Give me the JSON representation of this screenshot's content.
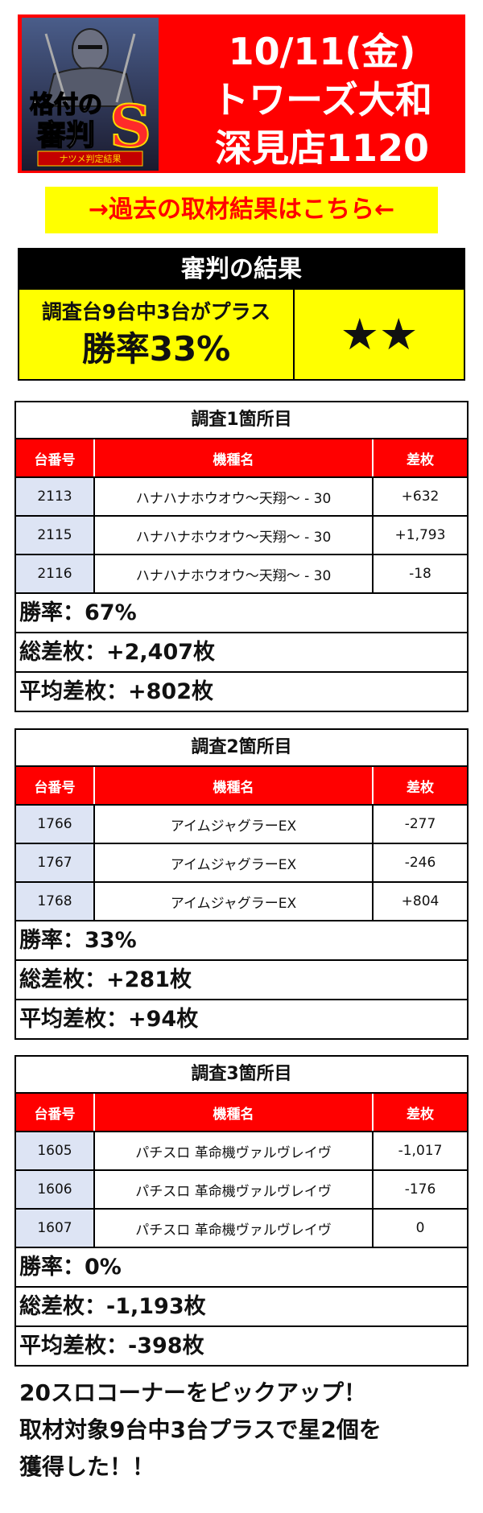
{
  "banner": {
    "logo_text_1": "格付の",
    "logo_text_2": "審判",
    "logo_letter": "S",
    "logo_caption": "ナツメ判定結果",
    "date": "10/11(金)",
    "store_line1": "トワーズ大和",
    "store_line2": "深見店1120"
  },
  "past_link": "→過去の取材結果はこちら←",
  "judgment": {
    "title": "審判の結果",
    "summary": "調査台9台中3台がプラス",
    "win_rate": "勝率33%",
    "stars": "★★"
  },
  "table_headers": {
    "machine_no": "台番号",
    "machine_name": "機種名",
    "diff": "差枚"
  },
  "sections": [
    {
      "title": "調査1箇所目",
      "rows": [
        {
          "no": "2113",
          "name": "ハナハナホウオウ～天翔～ - 30",
          "diff": "+632"
        },
        {
          "no": "2115",
          "name": "ハナハナホウオウ～天翔～ - 30",
          "diff": "+1,793"
        },
        {
          "no": "2116",
          "name": "ハナハナホウオウ～天翔～ - 30",
          "diff": "-18"
        }
      ],
      "win_rate": "勝率：67%",
      "total": "総差枚：+2,407枚",
      "average": "平均差枚：+802枚"
    },
    {
      "title": "調査2箇所目",
      "rows": [
        {
          "no": "1766",
          "name": "アイムジャグラーEX",
          "diff": "-277"
        },
        {
          "no": "1767",
          "name": "アイムジャグラーEX",
          "diff": "-246"
        },
        {
          "no": "1768",
          "name": "アイムジャグラーEX",
          "diff": "+804"
        }
      ],
      "win_rate": "勝率：33%",
      "total": "総差枚：+281枚",
      "average": "平均差枚：+94枚"
    },
    {
      "title": "調査3箇所目",
      "rows": [
        {
          "no": "1605",
          "name": "パチスロ 革命機ヴァルヴレイヴ",
          "diff": "-1,017"
        },
        {
          "no": "1606",
          "name": "パチスロ 革命機ヴァルヴレイヴ",
          "diff": "-176"
        },
        {
          "no": "1607",
          "name": "パチスロ 革命機ヴァルヴレイヴ",
          "diff": "0"
        }
      ],
      "win_rate": "勝率：0%",
      "total": "総差枚：-1,193枚",
      "average": "平均差枚：-398枚"
    }
  ],
  "footer": {
    "line1": "20スロコーナーをピックアップ！",
    "line2": "取材対象9台中3台プラスで星2個を",
    "line3": "獲得した！！"
  },
  "colors": {
    "banner_red": "#ff0000",
    "highlight_yellow": "#ffff00",
    "row_tint": "#dde4f4"
  }
}
